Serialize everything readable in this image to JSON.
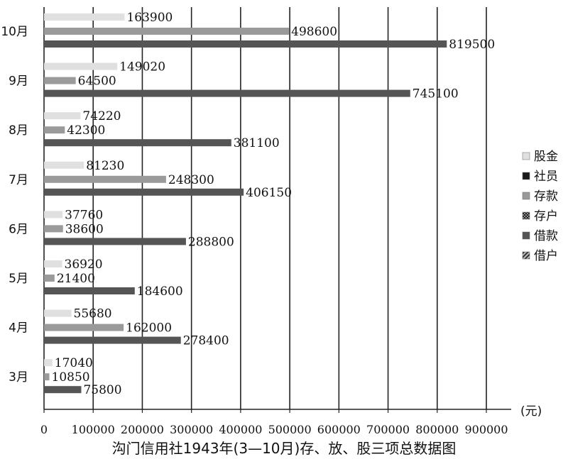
{
  "chart_data": {
    "type": "bar",
    "orientation": "horizontal",
    "caption": "沟门信用社1943年(3—10月)存、放、股三项总数据图",
    "unit_label": "(元)",
    "categories": [
      "10月",
      "9月",
      "8月",
      "7月",
      "6月",
      "5月",
      "4月",
      "3月"
    ],
    "series": [
      {
        "name": "股金",
        "color": "#e0e0e0",
        "values": [
          163900,
          149020,
          74220,
          81230,
          37760,
          36920,
          55680,
          17040
        ]
      },
      {
        "name": "存款",
        "color": "#9a9a9a",
        "values": [
          498600,
          64500,
          42300,
          248300,
          38600,
          21400,
          162000,
          10850
        ]
      },
      {
        "name": "借款",
        "color": "#555555",
        "values": [
          819500,
          745100,
          381100,
          406150,
          288800,
          184600,
          278400,
          75800
        ]
      }
    ],
    "value_labels": [
      [
        "163900",
        "498600",
        "819500"
      ],
      [
        "149020",
        "64500",
        "745100"
      ],
      [
        "74220",
        "42300",
        "381100"
      ],
      [
        "81230",
        "248300",
        "406150"
      ],
      [
        "37760",
        "38600",
        "288800"
      ],
      [
        "36920",
        "21400",
        "184600"
      ],
      [
        "55680",
        "162000",
        "278400"
      ],
      [
        "17040",
        "10850",
        "75800"
      ]
    ],
    "legend": {
      "position": "right",
      "items": [
        {
          "name": "股金",
          "color": "#e0e0e0",
          "pattern": "light"
        },
        {
          "name": "社员",
          "color": "#1a1a1a",
          "pattern": "solid"
        },
        {
          "name": "存款",
          "color": "#9a9a9a",
          "pattern": "solid"
        },
        {
          "name": "存户",
          "color": "#3a3a3a",
          "pattern": "checker"
        },
        {
          "name": "借款",
          "color": "#555555",
          "pattern": "solid"
        },
        {
          "name": "借户",
          "color": "#444444",
          "pattern": "hatch"
        }
      ]
    },
    "xlim": [
      0,
      900000
    ],
    "xticks": [
      0,
      100000,
      200000,
      300000,
      400000,
      500000,
      600000,
      700000,
      800000,
      900000
    ],
    "xtick_labels": [
      "0",
      "100000",
      "200000",
      "300000",
      "400000",
      "500000",
      "600000",
      "700000",
      "800000",
      "900000"
    ],
    "grid": "vertical"
  }
}
